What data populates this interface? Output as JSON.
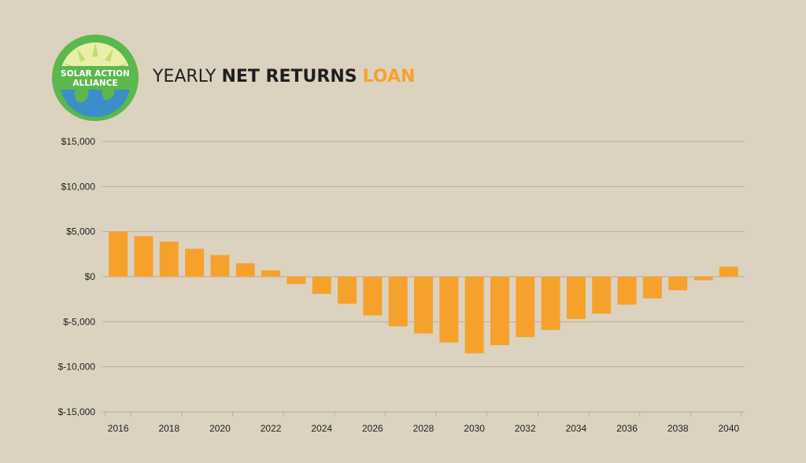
{
  "brand": {
    "logo_line1": "SOLAR ACTION",
    "logo_line2": "ALLIANCE"
  },
  "header": {
    "title_part1": "YEARLY",
    "title_part2": "NET RETURNS",
    "title_part3": "LOAN"
  },
  "colors": {
    "background": "#dbd3c0",
    "bar": "#f7a12d",
    "accent": "#f7a12d",
    "gridline": "#b7ae98",
    "logo_ring": "#5bb84c",
    "logo_ocean": "#3c8ec9"
  },
  "chart_data": {
    "type": "bar",
    "title": "YEARLY NET RETURNS LOAN",
    "xlabel": "",
    "ylabel": "",
    "ylim": [
      -15000,
      15000
    ],
    "grid": true,
    "y_ticks": [
      15000,
      10000,
      5000,
      0,
      -5000,
      -10000,
      -15000
    ],
    "y_tick_labels": [
      "$15,000",
      "$10,000",
      "$5,000",
      "$0",
      "$-5,000",
      "$-10,000",
      "$-15,000"
    ],
    "categories": [
      "2016",
      "2017",
      "2018",
      "2019",
      "2020",
      "2021",
      "2022",
      "2023",
      "2024",
      "2025",
      "2026",
      "2027",
      "2028",
      "2029",
      "2030",
      "2031",
      "2032",
      "2033",
      "2034",
      "2035",
      "2036",
      "2037",
      "2038",
      "2039",
      "2040"
    ],
    "x_tick_labels": [
      "2016",
      "2018",
      "2020",
      "2022",
      "2024",
      "2026",
      "2028",
      "2030",
      "2032",
      "2034",
      "2036",
      "2038",
      "2040"
    ],
    "values": [
      5000,
      4500,
      3900,
      3100,
      2400,
      1500,
      700,
      -800,
      -1900,
      -3000,
      -4300,
      -5500,
      -6300,
      -7300,
      -8500,
      -7600,
      -6700,
      -5900,
      -4700,
      -4100,
      -3100,
      -2400,
      -1500,
      -400,
      1100
    ]
  }
}
